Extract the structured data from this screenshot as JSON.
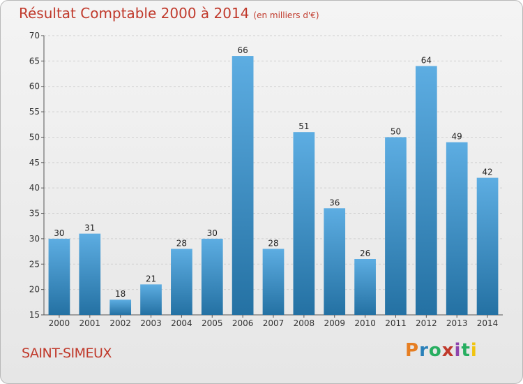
{
  "header": {
    "title": "Résultat Comptable 2000 à 2014",
    "subtitle": "(en milliers d'€)"
  },
  "footer": {
    "town": "SAINT-SIMEUX",
    "brand": "Proxiti",
    "brand_colors": [
      "#e67e22",
      "#2980b9",
      "#27ae60",
      "#c0392b",
      "#8e44ad",
      "#27ae60",
      "#f1c40f"
    ]
  },
  "colors": {
    "bar_light": "#5dade2",
    "bar_dark": "#2471a3",
    "title": "#c0392b",
    "grid": "#d0d0d0"
  },
  "chart_data": {
    "type": "bar",
    "title": "Résultat Comptable 2000 à 2014",
    "subtitle": "(en milliers d'€)",
    "categories": [
      "2000",
      "2001",
      "2002",
      "2003",
      "2004",
      "2005",
      "2006",
      "2007",
      "2008",
      "2009",
      "2010",
      "2011",
      "2012",
      "2013",
      "2014"
    ],
    "values": [
      30,
      31,
      18,
      21,
      28,
      30,
      66,
      28,
      51,
      36,
      26,
      50,
      64,
      49,
      42
    ],
    "ylim": [
      15,
      70
    ],
    "yticks": [
      15,
      20,
      25,
      30,
      35,
      40,
      45,
      50,
      55,
      60,
      65,
      70
    ],
    "grid": true,
    "legend": "none",
    "data_labels": true
  }
}
